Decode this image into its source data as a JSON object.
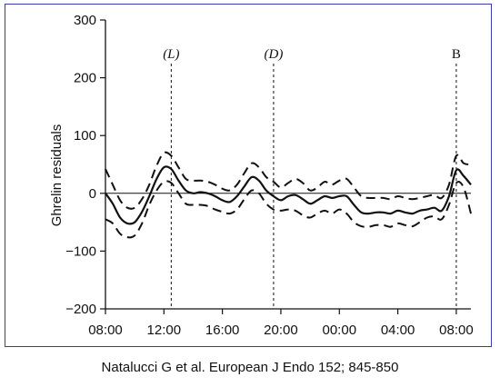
{
  "caption": "Natalucci G et al. European J Endo 152; 845-850",
  "chart_data": {
    "type": "line",
    "title": "",
    "xlabel": "",
    "ylabel": "Ghrelin residuals",
    "ylim": [
      -200,
      300
    ],
    "xlim": [
      8,
      33
    ],
    "yticks": [
      -200,
      -100,
      0,
      100,
      200,
      300
    ],
    "ytick_labels": [
      "−200",
      "−100",
      "0",
      "100",
      "200",
      "300"
    ],
    "xticks": [
      8,
      12,
      16,
      20,
      24,
      28,
      32
    ],
    "xtick_labels": [
      "08:00",
      "12:00",
      "16:00",
      "20:00",
      "00:00",
      "04:00",
      "08:00"
    ],
    "reference_line_y": 0,
    "grid": false,
    "legend": "none",
    "annotations": [
      {
        "label": "(L)",
        "x": 12.5
      },
      {
        "label": "(D)",
        "x": 19.5
      },
      {
        "label": "B",
        "x": 32.0
      }
    ],
    "x": [
      8,
      8.5,
      9,
      9.5,
      10,
      10.5,
      11,
      11.5,
      12,
      12.5,
      13,
      13.5,
      14,
      14.5,
      15,
      15.5,
      16,
      16.5,
      17,
      17.5,
      18,
      18.5,
      19,
      19.5,
      20,
      20.5,
      21,
      21.5,
      22,
      22.5,
      23,
      23.5,
      24,
      24.5,
      25,
      25.5,
      26,
      26.5,
      27,
      27.5,
      28,
      28.5,
      29,
      29.5,
      30,
      30.5,
      31,
      31.5,
      32,
      32.5,
      33
    ],
    "series": [
      {
        "values": [
          0,
          -18,
          -42,
          -52,
          -50,
          -32,
          -5,
          25,
          45,
          42,
          22,
          5,
          0,
          2,
          0,
          -5,
          -12,
          -15,
          -5,
          12,
          28,
          22,
          5,
          -5,
          -12,
          -5,
          -3,
          -10,
          -18,
          -12,
          -5,
          -8,
          -5,
          -5,
          -20,
          -33,
          -35,
          -33,
          -33,
          -35,
          -30,
          -33,
          -35,
          -30,
          -28,
          -25,
          -30,
          -5,
          40,
          30,
          15
        ]
      },
      {
        "values": [
          -45,
          -52,
          -70,
          -76,
          -73,
          -52,
          -20,
          5,
          20,
          18,
          0,
          -18,
          -20,
          -20,
          -22,
          -28,
          -32,
          -35,
          -28,
          -10,
          5,
          0,
          -18,
          -28,
          -30,
          -28,
          -30,
          -38,
          -42,
          -35,
          -30,
          -35,
          -28,
          -35,
          -50,
          -57,
          -58,
          -55,
          -55,
          -58,
          -52,
          -55,
          -57,
          -50,
          -42,
          -40,
          -45,
          -20,
          18,
          10,
          -35
        ]
      },
      {
        "values": [
          42,
          15,
          -12,
          -25,
          -25,
          -10,
          15,
          48,
          70,
          65,
          45,
          25,
          22,
          22,
          20,
          15,
          8,
          5,
          15,
          35,
          52,
          45,
          28,
          20,
          10,
          18,
          25,
          18,
          5,
          10,
          20,
          15,
          22,
          25,
          10,
          -5,
          -8,
          -8,
          -8,
          -10,
          -5,
          -8,
          -10,
          -8,
          -5,
          -3,
          -8,
          15,
          65,
          52,
          50
        ]
      }
    ]
  }
}
